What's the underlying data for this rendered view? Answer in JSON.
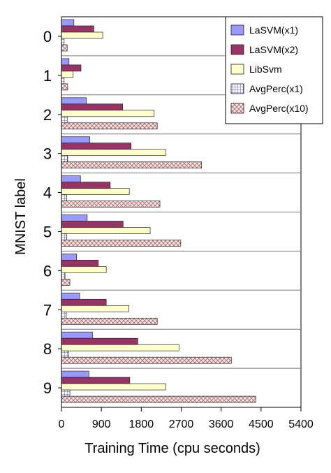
{
  "chart_data": {
    "type": "bar",
    "orientation": "horizontal",
    "title": "",
    "xlabel": "Training Time (cpu seconds)",
    "ylabel": "MNIST label",
    "xlim": [
      0,
      5400
    ],
    "xticks": [
      "0",
      "900",
      "1800",
      "2700",
      "3600",
      "4500",
      "5400"
    ],
    "categories": [
      "0",
      "1",
      "2",
      "3",
      "4",
      "5",
      "6",
      "7",
      "8",
      "9"
    ],
    "legend_position": "top-right",
    "grid": false,
    "series": [
      {
        "name": "LaSVM(x1)",
        "color": "#9999ff",
        "pattern": "solid",
        "values": [
          280,
          170,
          560,
          640,
          430,
          580,
          340,
          410,
          700,
          620
        ]
      },
      {
        "name": "LaSVM(x2)",
        "color": "#993366",
        "pattern": "solid",
        "values": [
          730,
          440,
          1380,
          1570,
          1100,
          1390,
          830,
          1010,
          1720,
          1540
        ]
      },
      {
        "name": "LibSvm",
        "color": "#ffffcc",
        "pattern": "solid",
        "values": [
          930,
          260,
          2090,
          2350,
          1530,
          2000,
          1010,
          1520,
          2650,
          2350
        ]
      },
      {
        "name": "AvgPerc(x1)",
        "color": "#9999ff",
        "pattern": "grid",
        "values": [
          60,
          60,
          130,
          140,
          120,
          120,
          80,
          110,
          160,
          190
        ]
      },
      {
        "name": "AvgPerc(x10)",
        "color": "#cc9999",
        "pattern": "crosshatch",
        "values": [
          130,
          140,
          2160,
          3160,
          2220,
          2690,
          190,
          2160,
          3830,
          4380
        ]
      }
    ]
  }
}
